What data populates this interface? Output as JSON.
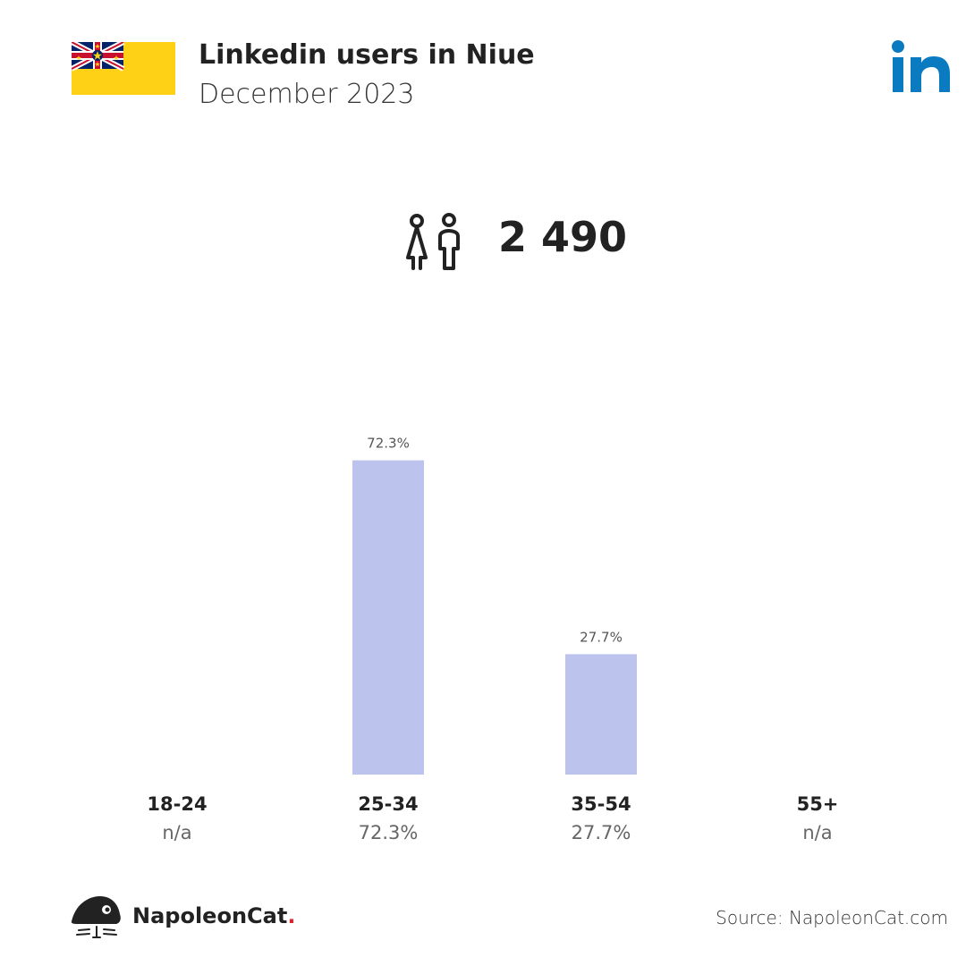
{
  "header": {
    "title": "Linkedin users in Niue",
    "subtitle": "December 2023"
  },
  "summary": {
    "total_users": "2 490",
    "icon": "users-icon"
  },
  "chart_data": {
    "type": "bar",
    "categories": [
      "18-24",
      "25-34",
      "35-54",
      "55+"
    ],
    "values": [
      null,
      72.3,
      27.7,
      null
    ],
    "value_labels": [
      "n/a",
      "72.3%",
      "27.7%",
      "n/a"
    ],
    "bar_labels": [
      "",
      "72.3%",
      "27.7%",
      ""
    ],
    "ylim": [
      0,
      100
    ],
    "bar_color": "#bcc4ed"
  },
  "footer": {
    "brand": "NapoleonCat",
    "brand_dot": ".",
    "source": "Source: NapoleonCat.com"
  },
  "colors": {
    "linkedin": "#0a7bc1",
    "bar": "#bcc4ed",
    "flag_yellow": "#fed116",
    "brand_dot": "#d7282f"
  }
}
